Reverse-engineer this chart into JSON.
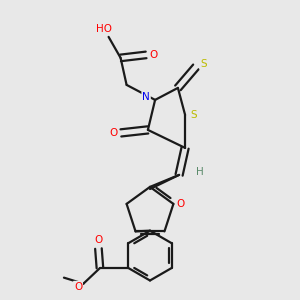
{
  "background_color": "#e8e8e8",
  "bond_color": "#1a1a1a",
  "atom_colors": {
    "O": "#ff0000",
    "N": "#0000ee",
    "S": "#bbbb00",
    "H": "#5a8a6a",
    "C": "#1a1a1a"
  },
  "lw": 1.6,
  "fs": 7.0,
  "xlim": [
    0,
    1
  ],
  "ylim": [
    0,
    1
  ]
}
